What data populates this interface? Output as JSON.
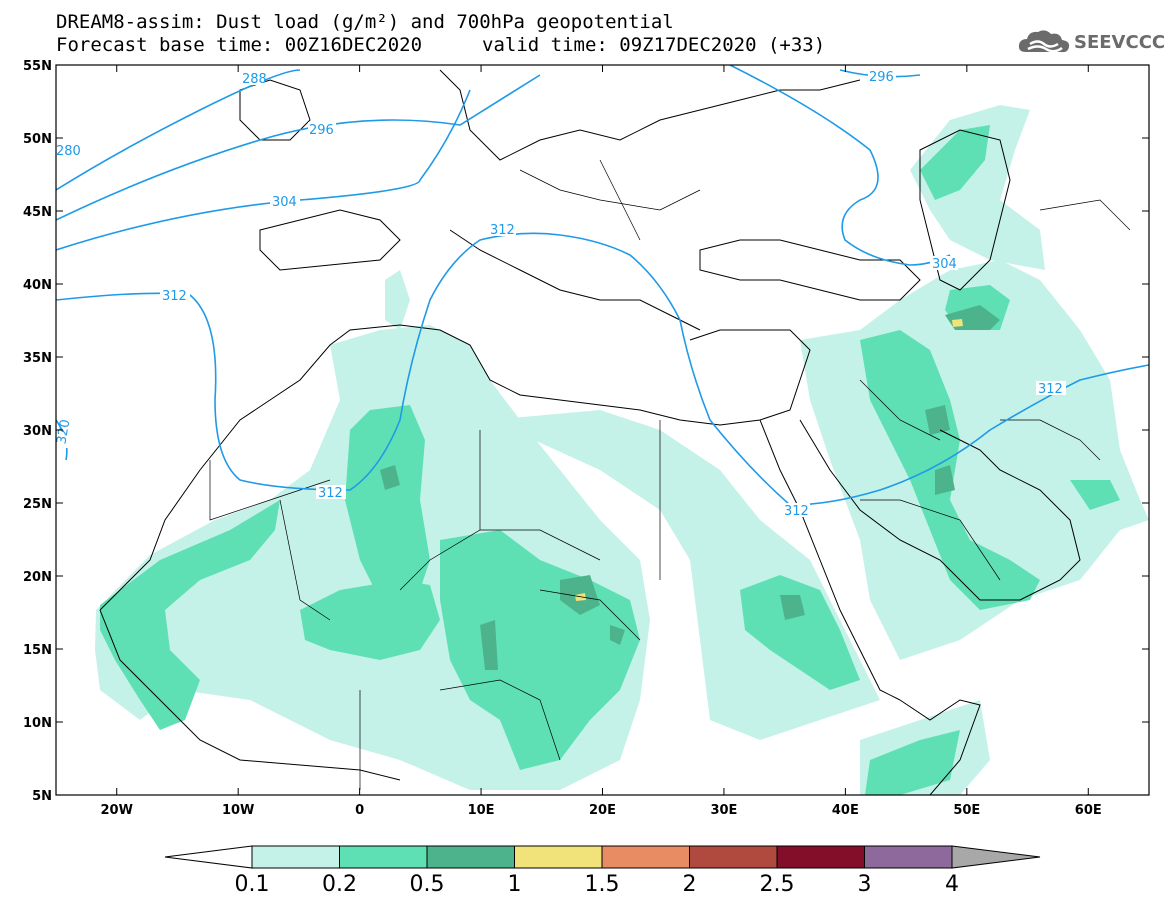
{
  "header": {
    "line1": "DREAM8-assim: Dust load (g/m²) and 700hPa geopotential",
    "line2": "Forecast base time: 00Z16DEC2020",
    "valid": "valid time: 09Z17DEC2020 (+33)"
  },
  "logo": {
    "text": "SEEVCCC",
    "icon": "cloud-icon"
  },
  "map": {
    "lon_range": [
      -25,
      65
    ],
    "lat_range": [
      5,
      55
    ],
    "lat_ticks": [
      "5N",
      "10N",
      "15N",
      "20N",
      "25N",
      "30N",
      "35N",
      "40N",
      "45N",
      "50N",
      "55N"
    ],
    "lon_ticks": [
      "20W",
      "10W",
      "0",
      "10E",
      "20E",
      "30E",
      "40E",
      "50E",
      "60E"
    ],
    "contour_labels": [
      "280",
      "288",
      "296",
      "296",
      "304",
      "304",
      "312",
      "312",
      "312",
      "312",
      "312",
      "320"
    ]
  },
  "colorbar": {
    "labels": [
      "0.1",
      "0.2",
      "0.5",
      "1",
      "1.5",
      "2",
      "2.5",
      "3",
      "4"
    ],
    "colors": [
      "#c4f2e8",
      "#5fe0b4",
      "#4db38c",
      "#f2e27a",
      "#e88c64",
      "#b04a3e",
      "#820e2a",
      "#8e6a9c",
      "#a8a8a8"
    ]
  }
}
